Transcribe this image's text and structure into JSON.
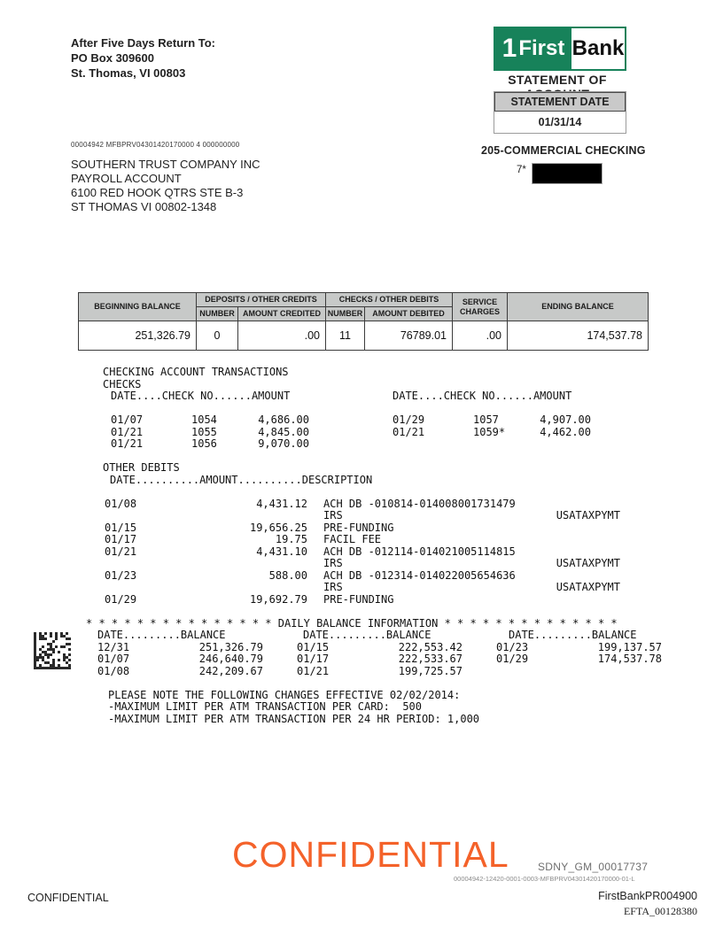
{
  "return_to": {
    "line1": "After Five Days Return To:",
    "line2": "PO Box 309600",
    "line3": "St. Thomas, VI  00803"
  },
  "brand": {
    "logo_one": "1",
    "logo_first": "First",
    "logo_bank": "Bank",
    "green": "#17825a",
    "statement_of_account": "STATEMENT OF ACCOUNT",
    "statement_date_label": "STATEMENT DATE",
    "statement_date": "01/31/14"
  },
  "account": {
    "processing_code": "00004942  MFBPRV04301420170000  4  000000000",
    "holder_line1": "SOUTHERN TRUST COMPANY INC",
    "holder_line2": "PAYROLL ACCOUNT",
    "holder_line3": "6100 RED HOOK QTRS STE B-3",
    "holder_line4": "ST THOMAS VI  00802-1348",
    "type": "205-COMMERCIAL CHECKING",
    "number_prefix": "7*"
  },
  "summary_table": {
    "headers": {
      "beginning": "BEGINNING BALANCE",
      "deposits_group": "DEPOSITS / OTHER CREDITS",
      "checks_group": "CHECKS / OTHER DEBITS",
      "number1": "NUMBER",
      "amount_credited": "AMOUNT  CREDITED",
      "number2": "NUMBER",
      "amount_debited": "AMOUNT DEBITED",
      "service": "SERVICE CHARGES",
      "ending": "ENDING BALANCE"
    },
    "values": {
      "beginning_balance": "251,326.79",
      "deposits_number": "0",
      "deposits_amount": ".00",
      "checks_number": "11",
      "checks_amount": "76789.01",
      "service_charges": ".00",
      "ending_balance": "174,537.78"
    }
  },
  "transactions": {
    "title": "CHECKING ACCOUNT TRANSACTIONS",
    "checks_label": "CHECKS",
    "checks_header": "DATE....CHECK NO......AMOUNT",
    "checks_left": [
      {
        "date": "01/07",
        "check_no": "1054",
        "amount": "4,686.00"
      },
      {
        "date": "01/21",
        "check_no": "1055",
        "amount": "4,845.00"
      },
      {
        "date": "01/21",
        "check_no": "1056",
        "amount": "9,070.00"
      }
    ],
    "checks_right": [
      {
        "date": "01/29",
        "check_no": "1057",
        "amount": "4,907.00"
      },
      {
        "date": "01/21",
        "check_no": "1059*",
        "amount": "4,462.00"
      }
    ],
    "other_debits_label": "OTHER DEBITS",
    "other_debits_header": "DATE..........AMOUNT..........DESCRIPTION",
    "other_debits": [
      {
        "date": "01/08",
        "amount": "4,431.12",
        "desc": "ACH DB -010814-014008001731479",
        "tag": ""
      },
      {
        "date": "",
        "amount": "",
        "desc": "IRS",
        "tag": "USATAXPYMT"
      },
      {
        "date": "01/15",
        "amount": "19,656.25",
        "desc": "PRE-FUNDING",
        "tag": ""
      },
      {
        "date": "01/17",
        "amount": "19.75",
        "desc": "FACIL FEE",
        "tag": ""
      },
      {
        "date": "01/21",
        "amount": "4,431.10",
        "desc": "ACH DB -012114-014021005114815",
        "tag": ""
      },
      {
        "date": "",
        "amount": "",
        "desc": "IRS",
        "tag": "USATAXPYMT"
      },
      {
        "date": "01/23",
        "amount": "588.00",
        "desc": "ACH DB -012314-014022005654636",
        "tag": ""
      },
      {
        "date": "",
        "amount": "",
        "desc": "IRS",
        "tag": "USATAXPYMT"
      },
      {
        "date": "01/29",
        "amount": "19,692.79",
        "desc": "PRE-FUNDING",
        "tag": ""
      }
    ],
    "daily_balance": {
      "title_line": "* * * * * * * * * * * * * * * DAILY BALANCE INFORMATION * * * * * * * * * * * * * *",
      "col_header": "DATE.........BALANCE",
      "rows": [
        [
          {
            "date": "12/31",
            "balance": "251,326.79"
          },
          {
            "date": "01/15",
            "balance": "222,553.42"
          },
          {
            "date": "01/23",
            "balance": "199,137.57"
          }
        ],
        [
          {
            "date": "01/07",
            "balance": "246,640.79"
          },
          {
            "date": "01/17",
            "balance": "222,533.67"
          },
          {
            "date": "01/29",
            "balance": "174,537.78"
          }
        ],
        [
          {
            "date": "01/08",
            "balance": "242,209.67"
          },
          {
            "date": "01/21",
            "balance": "199,725.57"
          }
        ]
      ]
    },
    "notes": [
      "PLEASE NOTE THE FOLLOWING CHANGES EFFECTIVE 02/02/2014:",
      "-MAXIMUM LIMIT PER ATM TRANSACTION PER CARD:  500",
      "-MAXIMUM LIMIT PER ATM TRANSACTION PER 24 HR PERIOD: 1,000"
    ]
  },
  "stamps": {
    "watermark": "CONFIDENTIAL",
    "watermark_color": "#f4622a",
    "sdny": "SDNY_GM_00017737",
    "doc_code": "00004942-12420-0001-0003-MFBPRV04301420170000-01-L"
  },
  "footer": {
    "left": "CONFIDENTIAL",
    "right": "FirstBankPR004900",
    "bates": "EFTA_00128380"
  }
}
